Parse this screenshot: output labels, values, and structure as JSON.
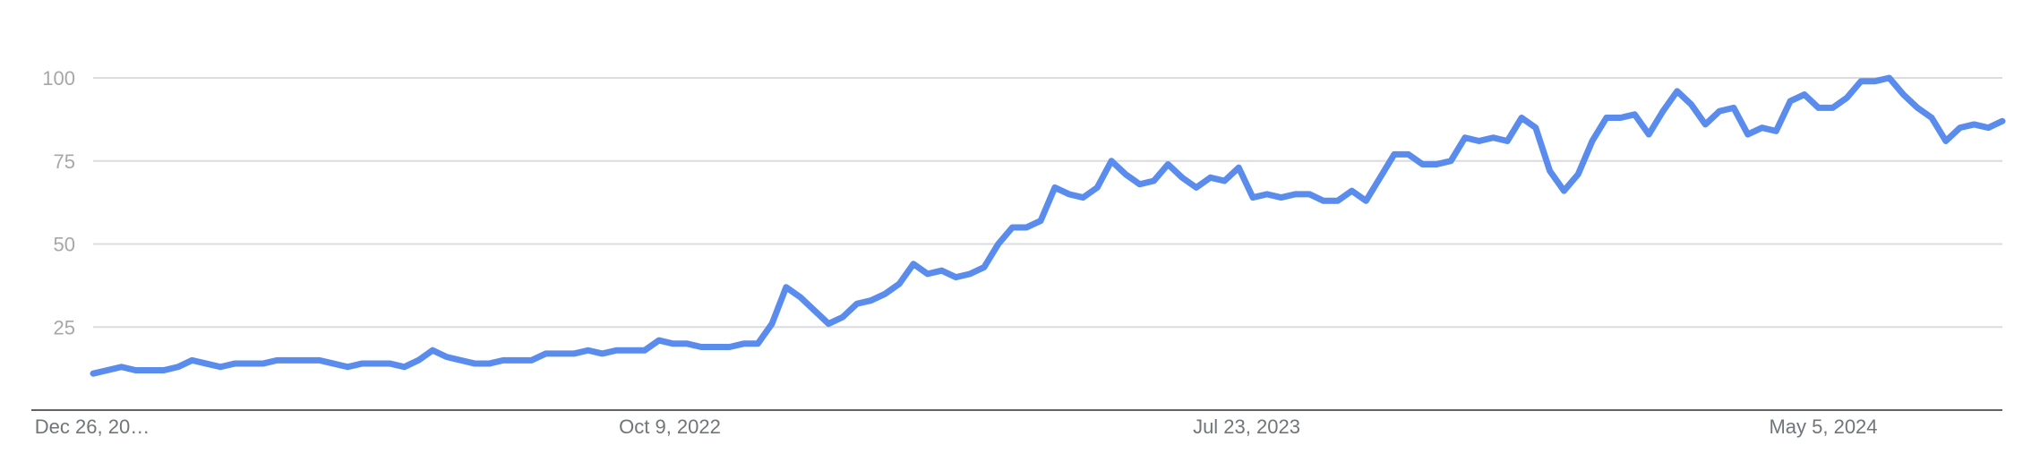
{
  "chart_data": {
    "type": "line",
    "title": "",
    "xlabel": "",
    "ylabel": "",
    "ylim": [
      0,
      100
    ],
    "yticks": [
      25,
      50,
      75,
      100
    ],
    "x_tick_labels": [
      "Dec 26, 20…",
      "Oct 9, 2022",
      "Jul 23, 2023",
      "May 5, 2024"
    ],
    "grid": true,
    "series_color": "#5a8ced",
    "grid_color": "#dadce0",
    "axis_color": "#5f6368",
    "series": [
      {
        "values": [
          11,
          12,
          13,
          12,
          12,
          12,
          13,
          15,
          14,
          13,
          14,
          14,
          14,
          15,
          15,
          15,
          15,
          14,
          13,
          14,
          14,
          14,
          13,
          15,
          18,
          16,
          15,
          14,
          14,
          15,
          15,
          15,
          17,
          17,
          17,
          18,
          17,
          18,
          18,
          18,
          21,
          20,
          20,
          19,
          19,
          19,
          20,
          20,
          26,
          37,
          34,
          30,
          26,
          28,
          32,
          33,
          35,
          38,
          44,
          41,
          42,
          40,
          41,
          43,
          50,
          55,
          55,
          57,
          67,
          65,
          64,
          67,
          75,
          71,
          68,
          69,
          74,
          70,
          67,
          70,
          69,
          73,
          64,
          65,
          64,
          65,
          65,
          63,
          63,
          66,
          63,
          70,
          77,
          77,
          74,
          74,
          75,
          82,
          81,
          82,
          81,
          88,
          85,
          72,
          66,
          71,
          81,
          88,
          88,
          89,
          83,
          90,
          96,
          92,
          86,
          90,
          91,
          83,
          85,
          84,
          93,
          95,
          91,
          91,
          94,
          99,
          99,
          100,
          95,
          91,
          88,
          81,
          85,
          86,
          85,
          87
        ]
      }
    ]
  }
}
